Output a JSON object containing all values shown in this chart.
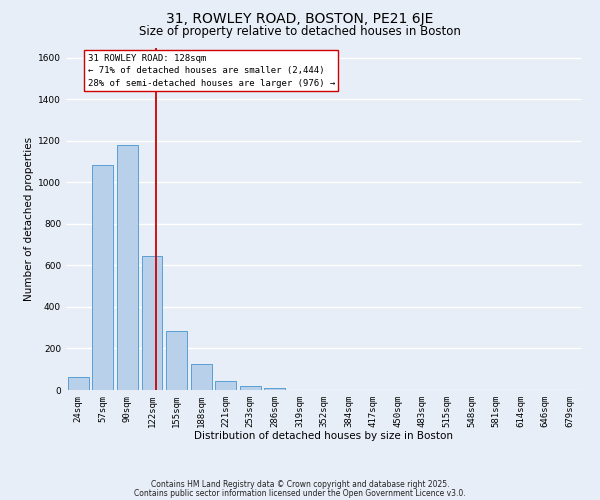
{
  "title": "31, ROWLEY ROAD, BOSTON, PE21 6JE",
  "subtitle": "Size of property relative to detached houses in Boston",
  "xlabel": "Distribution of detached houses by size in Boston",
  "ylabel": "Number of detached properties",
  "bar_labels": [
    "24sqm",
    "57sqm",
    "90sqm",
    "122sqm",
    "155sqm",
    "188sqm",
    "221sqm",
    "253sqm",
    "286sqm",
    "319sqm",
    "352sqm",
    "384sqm",
    "417sqm",
    "450sqm",
    "483sqm",
    "515sqm",
    "548sqm",
    "581sqm",
    "614sqm",
    "646sqm",
    "679sqm"
  ],
  "bar_values": [
    65,
    1085,
    1180,
    645,
    285,
    125,
    45,
    20,
    10,
    0,
    0,
    0,
    0,
    0,
    0,
    0,
    0,
    0,
    0,
    0,
    0
  ],
  "bar_color": "#b8d0ea",
  "bar_edge_color": "#5a9fd4",
  "ylim": [
    0,
    1650
  ],
  "yticks": [
    0,
    200,
    400,
    600,
    800,
    1000,
    1200,
    1400,
    1600
  ],
  "property_line_x": 3.18,
  "property_line_color": "#cc0000",
  "annotation_text": "31 ROWLEY ROAD: 128sqm\n← 71% of detached houses are smaller (2,444)\n28% of semi-detached houses are larger (976) →",
  "annotation_box_color": "#ffffff",
  "annotation_box_edge": "#cc0000",
  "footnote1": "Contains HM Land Registry data © Crown copyright and database right 2025.",
  "footnote2": "Contains public sector information licensed under the Open Government Licence v3.0.",
  "background_color": "#e8eef7",
  "grid_color": "#ffffff",
  "title_fontsize": 10,
  "subtitle_fontsize": 8.5,
  "label_fontsize": 7.5,
  "tick_fontsize": 6.5,
  "annot_fontsize": 6.5,
  "footnote_fontsize": 5.5
}
